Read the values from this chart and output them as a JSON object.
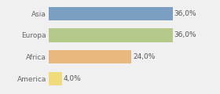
{
  "categories": [
    "America",
    "Africa",
    "Europa",
    "Asia"
  ],
  "values": [
    4.0,
    24.0,
    36.0,
    36.0
  ],
  "labels": [
    "4,0%",
    "24,0%",
    "36,0%",
    "36,0%"
  ],
  "bar_colors": [
    "#f0db7a",
    "#e8b87e",
    "#b5c98a",
    "#7a9fc2"
  ],
  "xlim": [
    0,
    42
  ],
  "background_color": "#f0f0f0",
  "bar_height": 0.62,
  "label_fontsize": 6.5,
  "ytick_fontsize": 6.5,
  "label_color": "#555555",
  "ytick_color": "#666666"
}
